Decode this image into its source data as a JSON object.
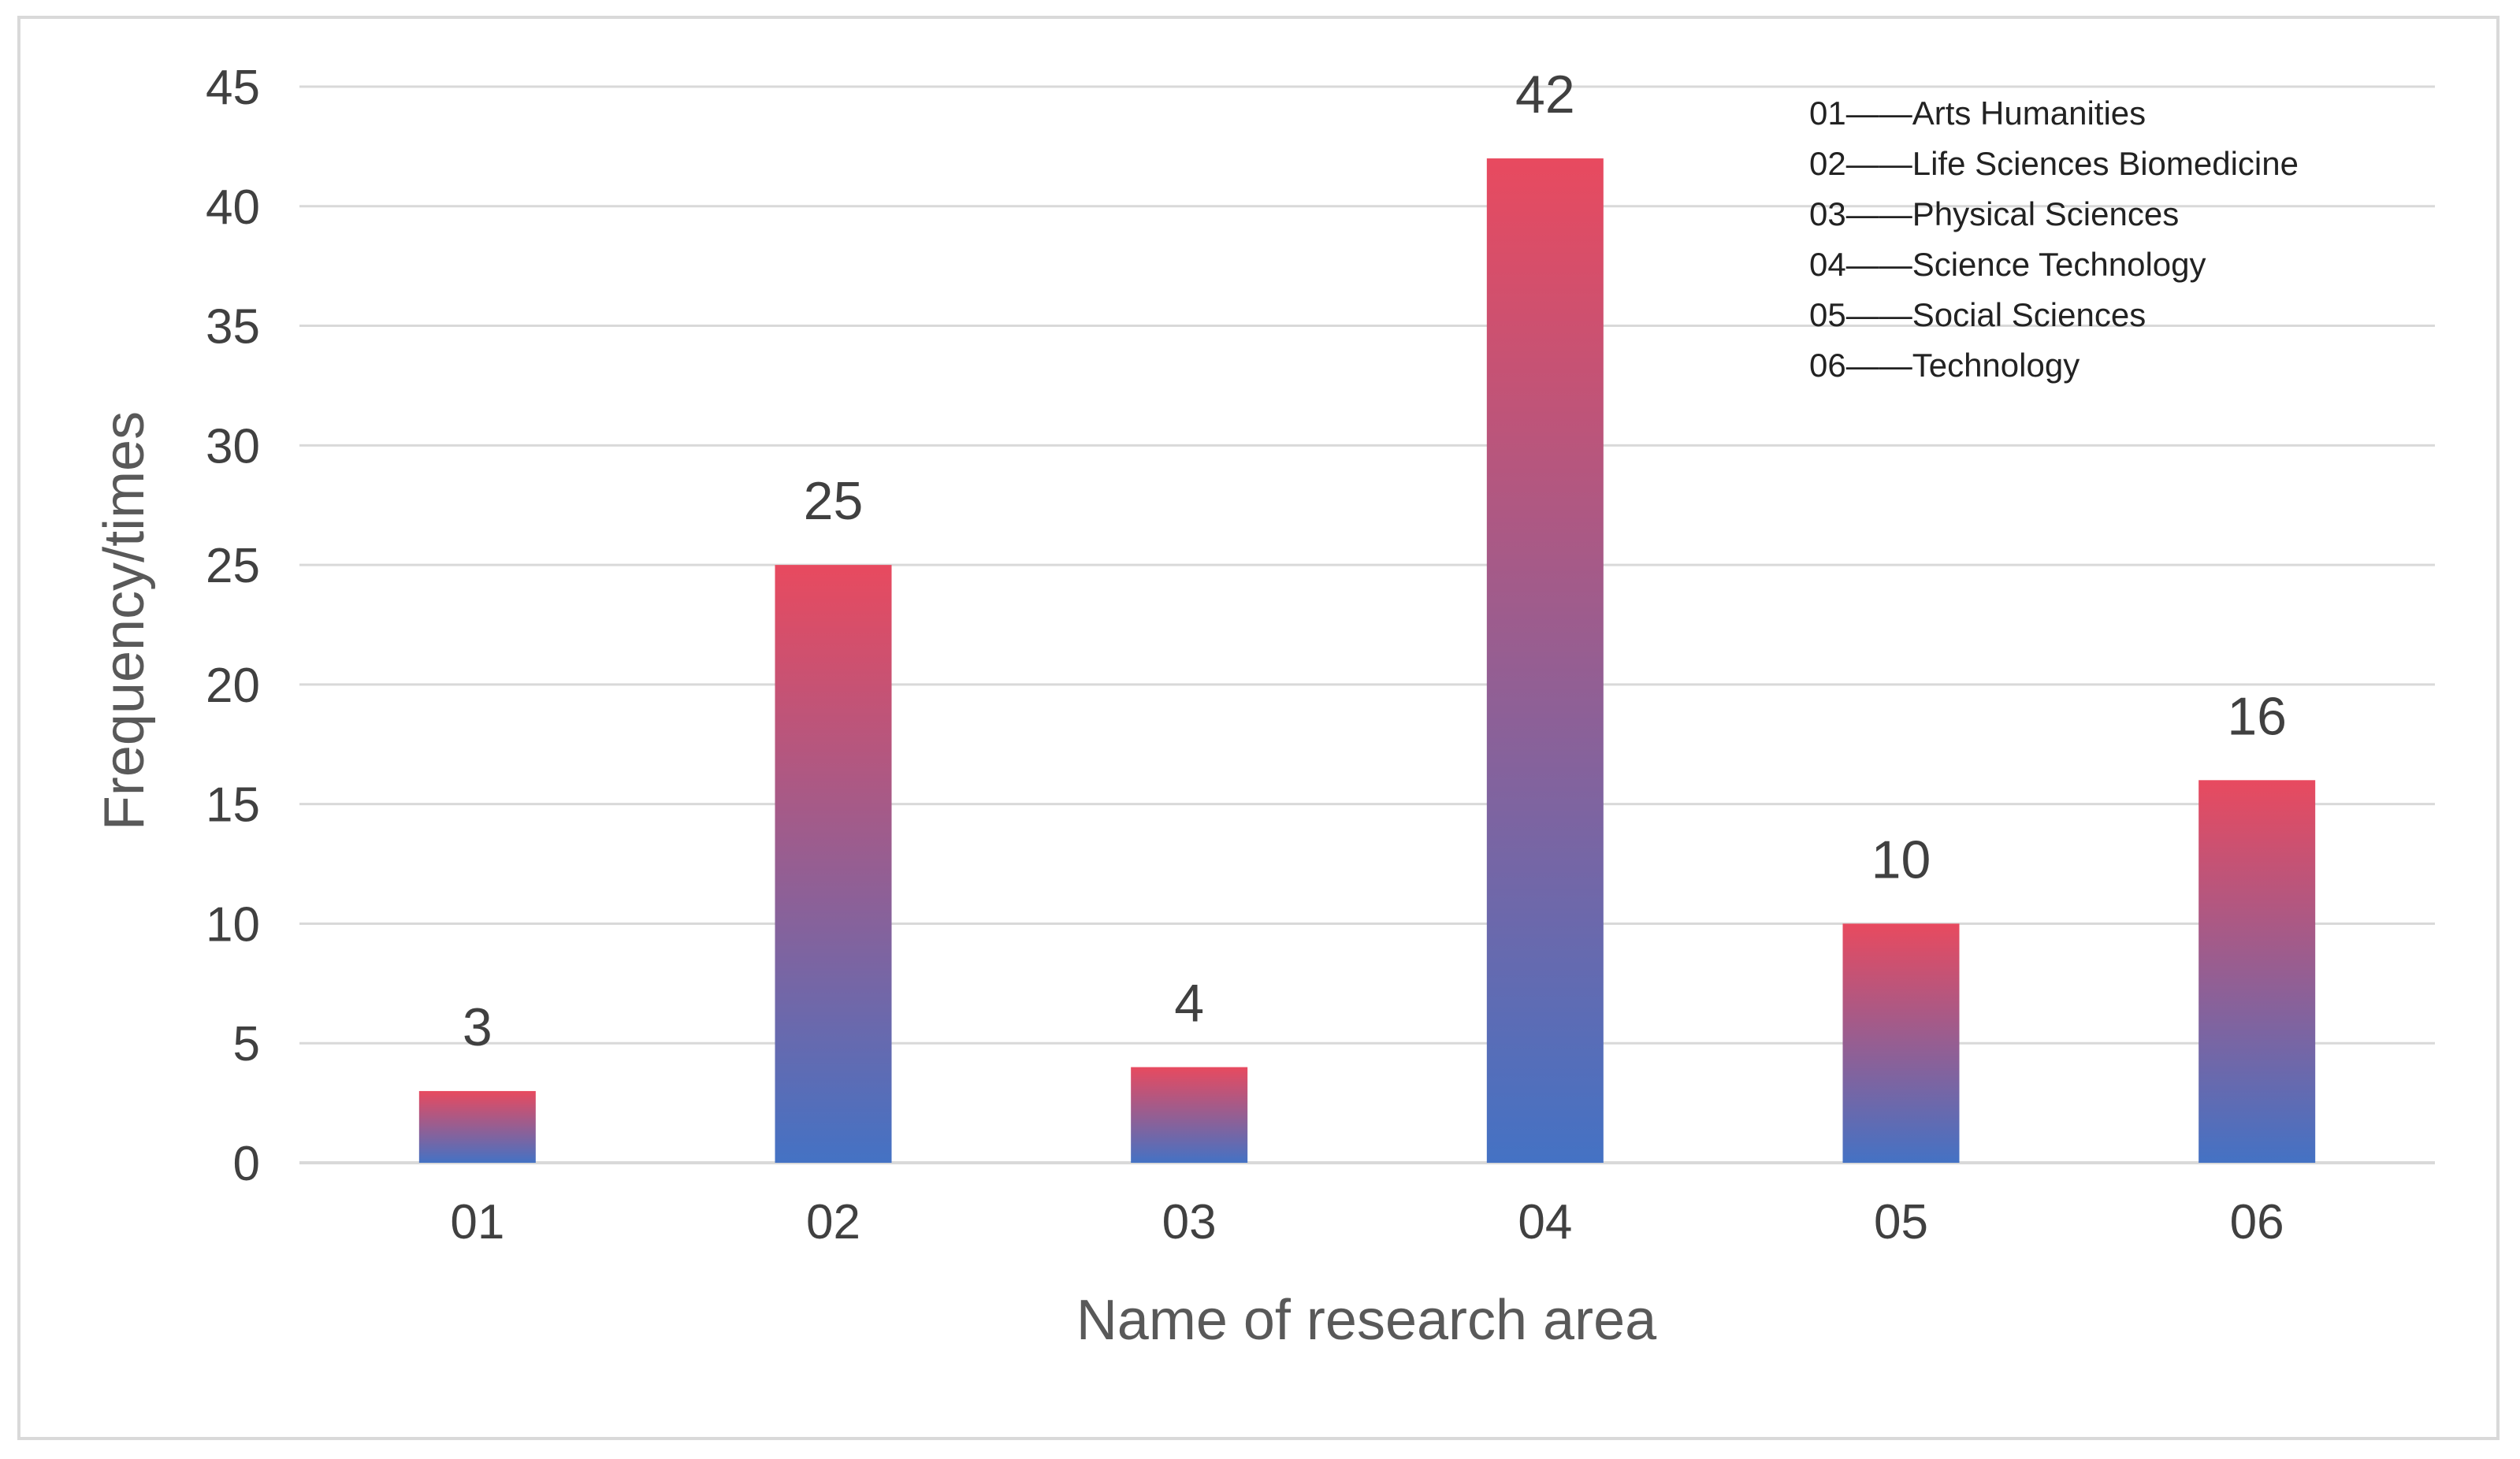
{
  "chart_data": {
    "type": "bar",
    "categories": [
      "01",
      "02",
      "03",
      "04",
      "05",
      "06"
    ],
    "values": [
      3,
      25,
      4,
      42,
      10,
      16
    ],
    "title": "",
    "xlabel": "Name of research area",
    "ylabel": "Frequency/times",
    "ylim": [
      0,
      45
    ],
    "yticks": [
      0,
      5,
      10,
      15,
      20,
      25,
      30,
      35,
      40,
      45
    ],
    "grid": true,
    "legend_position": "top-right",
    "legend": [
      "01——Arts Humanities",
      "02——Life Sciences Biomedicine",
      "03——Physical Sciences",
      "04——Science Technology",
      "05——Social Sciences",
      "06——Technology"
    ],
    "colors": {
      "bar_top": "#e84a5f",
      "bar_bottom": "#4472c4",
      "grid": "#d9d9d9",
      "axis": "#d9d9d9",
      "text": "#404040"
    }
  }
}
